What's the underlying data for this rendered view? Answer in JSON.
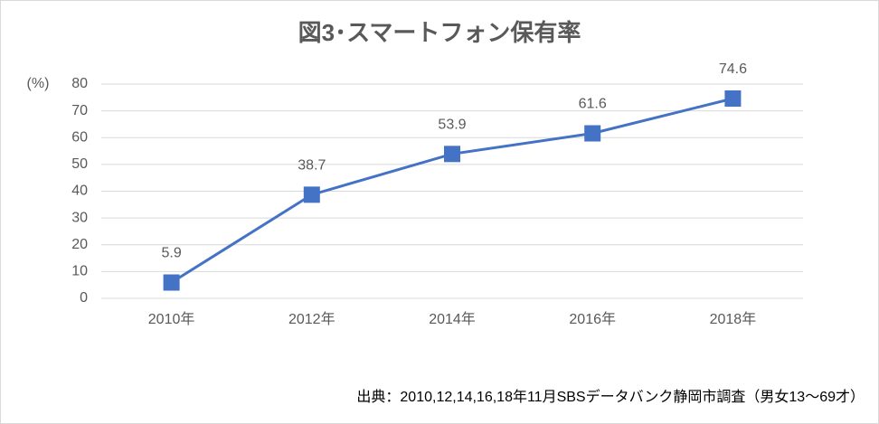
{
  "chart_data": {
    "type": "line",
    "title": "図3･スマートフォン保有率",
    "ylabel": "(%)",
    "categories": [
      "2010年",
      "2012年",
      "2014年",
      "2016年",
      "2018年"
    ],
    "series": [
      {
        "name": "スマートフォン保有率",
        "color": "#4472c4",
        "values": [
          5.9,
          38.7,
          53.9,
          61.6,
          74.6
        ]
      }
    ],
    "ylim": [
      0,
      80
    ],
    "yticks": [
      0,
      10,
      20,
      30,
      40,
      50,
      60,
      70,
      80
    ],
    "grid": true,
    "source": "出典：2010,12,14,16,18年11月SBSデータバンク静岡市調査（男女13～69才）"
  }
}
